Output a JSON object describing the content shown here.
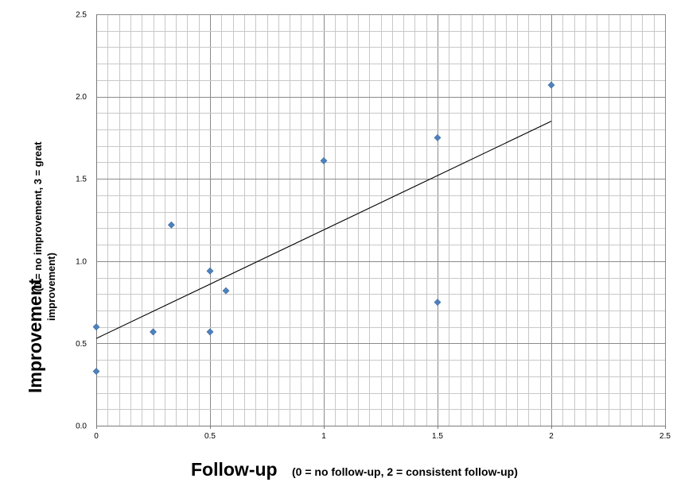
{
  "chart_data": {
    "type": "scatter",
    "xlabel": "Follow-up",
    "xlabel_detail": "(0 = no follow-up, 2 = consistent follow-up)",
    "ylabel": "Improvement",
    "ylabel_detail_line1": "(0 = no improvement, 3 = great",
    "ylabel_detail_line2": "improvement)",
    "xlim": [
      0,
      2.5
    ],
    "ylim": [
      0,
      2.5
    ],
    "x_ticks": [
      "0",
      "0.5",
      "1",
      "1.5",
      "2",
      "2.5"
    ],
    "y_ticks": [
      "0.0",
      "0.5",
      "1.0",
      "1.5",
      "2.0",
      "2.5"
    ],
    "grid": true,
    "marker_color": "#4F81BD",
    "trendline_color": "#000000",
    "points": [
      {
        "x": 0,
        "y": 0.33
      },
      {
        "x": 0,
        "y": 0.6
      },
      {
        "x": 0.25,
        "y": 0.57
      },
      {
        "x": 0.33,
        "y": 1.22
      },
      {
        "x": 0.5,
        "y": 0.94
      },
      {
        "x": 0.5,
        "y": 0.57
      },
      {
        "x": 0.57,
        "y": 0.82
      },
      {
        "x": 1,
        "y": 1.61
      },
      {
        "x": 1.5,
        "y": 1.75
      },
      {
        "x": 1.5,
        "y": 0.75
      },
      {
        "x": 2,
        "y": 2.07
      }
    ],
    "trendline": {
      "x": [
        0,
        2
      ],
      "y": [
        0.53,
        1.85
      ]
    }
  }
}
